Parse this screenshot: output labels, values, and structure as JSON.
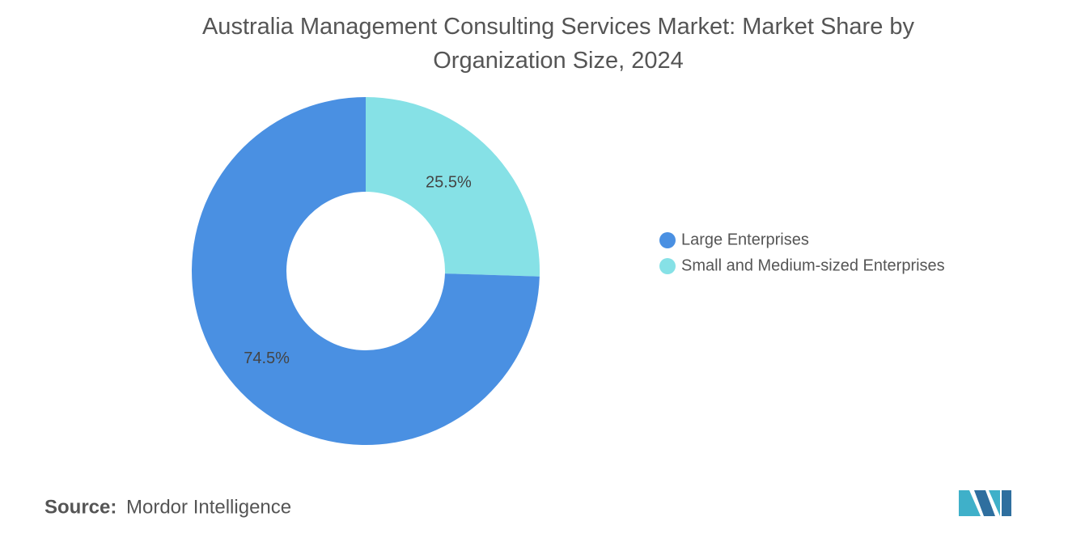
{
  "chart_data": {
    "type": "donut",
    "title": "Australia Management Consulting Services Market: Market Share by Organization Size, 2024",
    "categories": [
      "Large Enterprises",
      "Small and Medium-sized Enterprises"
    ],
    "values": [
      74.5,
      25.5
    ],
    "value_labels": [
      "74.5%",
      "25.5%"
    ],
    "colors": [
      "#4a90e2",
      "#86e1e6"
    ],
    "legend": "right",
    "source_label": "Source:",
    "source": "Mordor Intelligence"
  }
}
